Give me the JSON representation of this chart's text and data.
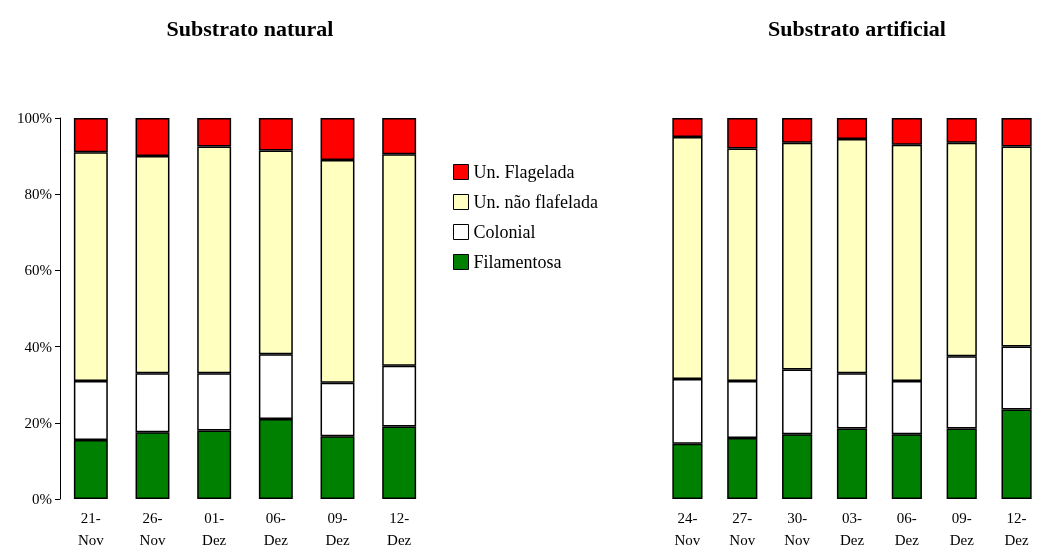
{
  "chart_data": [
    {
      "type": "bar",
      "title": "Substrato natural",
      "stacked": true,
      "legend": "right",
      "grid": false,
      "categories": [
        "21-Nov",
        "26-Nov",
        "01-Dez",
        "06-Dez",
        "09-Dez",
        "12-Dez"
      ],
      "ylim": [
        0,
        100
      ],
      "yticks": [
        {
          "value": 0,
          "label": "0%"
        },
        {
          "value": 20,
          "label": "20%"
        },
        {
          "value": 40,
          "label": "40%"
        },
        {
          "value": 60,
          "label": "60%"
        },
        {
          "value": 80,
          "label": "80%"
        },
        {
          "value": 100,
          "label": "100%"
        }
      ],
      "series": [
        {
          "name": "Filamentosa",
          "color": "#008000",
          "values": [
            15.5,
            17.5,
            18,
            21,
            16.5,
            19
          ]
        },
        {
          "name": "Colonial",
          "color": "#ffffff",
          "values": [
            15.5,
            15.5,
            15,
            17,
            14,
            16
          ]
        },
        {
          "name": "Un. não flafelada",
          "color": "#ffffc0",
          "values": [
            60,
            57,
            59.5,
            53.5,
            58.5,
            55.5
          ]
        },
        {
          "name": "Un. Flagelada",
          "color": "#ff0000",
          "values": [
            9,
            10,
            7.5,
            8.5,
            11,
            9.5
          ]
        }
      ]
    },
    {
      "type": "bar",
      "title": "Substrato artificial",
      "stacked": true,
      "grid": false,
      "tick_labels": "x",
      "categories": [
        "24-Nov",
        "27-Nov",
        "30-Nov",
        "03-Dez",
        "06-Dez",
        "09-Dez",
        "12-Dez"
      ],
      "ylim": [
        0,
        100
      ],
      "series": [
        {
          "color": "#008000",
          "values": [
            14.5,
            16,
            17,
            18.5,
            17,
            18.5,
            23.5
          ]
        },
        {
          "color": "#ffffff",
          "values": [
            17,
            15,
            17,
            14.5,
            14,
            19,
            16.5
          ]
        },
        {
          "color": "#ffffc0",
          "values": [
            63.5,
            61,
            59.5,
            61.5,
            62,
            56,
            52.5
          ]
        },
        {
          "color": "#ff0000",
          "values": [
            5,
            8,
            6.5,
            5.5,
            7,
            6.5,
            7.5
          ]
        }
      ]
    }
  ]
}
